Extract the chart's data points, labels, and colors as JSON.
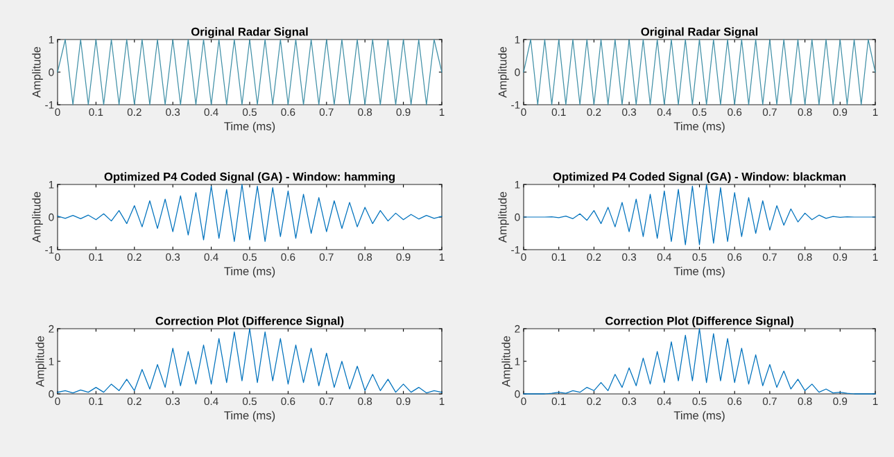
{
  "chart_data": [
    {
      "type": "line",
      "title": "Original Radar Signal",
      "xlabel": "Time (ms)",
      "ylabel": "Amplitude",
      "xlim": [
        0,
        1
      ],
      "ylim": [
        -1,
        1
      ],
      "xticks": [
        0,
        0.1,
        0.2,
        0.3,
        0.4,
        0.5,
        0.6,
        0.7,
        0.8,
        0.9,
        1
      ],
      "yticks": [
        -1,
        0,
        1
      ],
      "grid": false,
      "x": [
        0,
        0.02,
        0.04,
        0.06,
        0.08,
        0.1,
        0.12,
        0.14,
        0.16,
        0.18,
        0.2,
        0.22,
        0.24,
        0.26,
        0.28,
        0.3,
        0.32,
        0.34,
        0.36,
        0.38,
        0.4,
        0.42,
        0.44,
        0.46,
        0.48,
        0.5,
        0.52,
        0.54,
        0.56,
        0.58,
        0.6,
        0.62,
        0.64,
        0.66,
        0.68,
        0.7,
        0.72,
        0.74,
        0.76,
        0.78,
        0.8,
        0.82,
        0.84,
        0.86,
        0.88,
        0.9,
        0.92,
        0.94,
        0.96,
        0.98,
        1
      ],
      "series": [
        {
          "color": "#3f8fa6",
          "values": [
            0,
            1,
            -1,
            1,
            -1,
            1,
            -1,
            1,
            -1,
            1,
            -1,
            1,
            -1,
            1,
            -1,
            1,
            -1,
            1,
            -1,
            1,
            -1,
            1,
            -1,
            1,
            -1,
            1,
            -1,
            1,
            -1,
            1,
            -1,
            1,
            -1,
            1,
            -1,
            1,
            -1,
            1,
            -1,
            1,
            -1,
            1,
            -1,
            1,
            -1,
            1,
            -1,
            1,
            -1,
            1,
            0
          ]
        }
      ]
    },
    {
      "type": "line",
      "title": "Original Radar Signal",
      "xlabel": "Time (ms)",
      "ylabel": "Amplitude",
      "xlim": [
        0,
        1
      ],
      "ylim": [
        -1,
        1
      ],
      "xticks": [
        0,
        0.1,
        0.2,
        0.3,
        0.4,
        0.5,
        0.6,
        0.7,
        0.8,
        0.9,
        1
      ],
      "yticks": [
        -1,
        0,
        1
      ],
      "grid": false,
      "x": [
        0,
        0.02,
        0.04,
        0.06,
        0.08,
        0.1,
        0.12,
        0.14,
        0.16,
        0.18,
        0.2,
        0.22,
        0.24,
        0.26,
        0.28,
        0.3,
        0.32,
        0.34,
        0.36,
        0.38,
        0.4,
        0.42,
        0.44,
        0.46,
        0.48,
        0.5,
        0.52,
        0.54,
        0.56,
        0.58,
        0.6,
        0.62,
        0.64,
        0.66,
        0.68,
        0.7,
        0.72,
        0.74,
        0.76,
        0.78,
        0.8,
        0.82,
        0.84,
        0.86,
        0.88,
        0.9,
        0.92,
        0.94,
        0.96,
        0.98,
        1
      ],
      "series": [
        {
          "color": "#3f8fa6",
          "values": [
            0,
            1,
            -1,
            1,
            -1,
            1,
            -1,
            1,
            -1,
            1,
            -1,
            1,
            -1,
            1,
            -1,
            1,
            -1,
            1,
            -1,
            1,
            -1,
            1,
            -1,
            1,
            -1,
            1,
            -1,
            1,
            -1,
            1,
            -1,
            1,
            -1,
            1,
            -1,
            1,
            -1,
            1,
            -1,
            1,
            -1,
            1,
            -1,
            1,
            -1,
            1,
            -1,
            1,
            -1,
            1,
            0
          ]
        }
      ]
    },
    {
      "type": "line",
      "title": "Optimized P4 Coded Signal (GA) - Window: hamming",
      "xlabel": "Time (ms)",
      "ylabel": "Amplitude",
      "xlim": [
        0,
        1
      ],
      "ylim": [
        -1,
        1
      ],
      "xticks": [
        0,
        0.1,
        0.2,
        0.3,
        0.4,
        0.5,
        0.6,
        0.7,
        0.8,
        0.9,
        1
      ],
      "yticks": [
        -1,
        0,
        1
      ],
      "grid": false,
      "x": [
        0,
        0.02,
        0.04,
        0.06,
        0.08,
        0.1,
        0.12,
        0.14,
        0.16,
        0.18,
        0.2,
        0.22,
        0.24,
        0.26,
        0.28,
        0.3,
        0.32,
        0.34,
        0.36,
        0.38,
        0.4,
        0.42,
        0.44,
        0.46,
        0.48,
        0.5,
        0.52,
        0.54,
        0.56,
        0.58,
        0.6,
        0.62,
        0.64,
        0.66,
        0.68,
        0.7,
        0.72,
        0.74,
        0.76,
        0.78,
        0.8,
        0.82,
        0.84,
        0.86,
        0.88,
        0.9,
        0.92,
        0.94,
        0.96,
        0.98,
        1
      ],
      "series": [
        {
          "color": "#0072bd",
          "values": [
            0.03,
            -0.04,
            0.05,
            -0.05,
            0.06,
            -0.08,
            0.1,
            -0.12,
            0.2,
            -0.2,
            0.35,
            -0.3,
            0.5,
            -0.35,
            0.55,
            -0.45,
            0.65,
            -0.55,
            0.75,
            -0.7,
            0.95,
            -0.65,
            0.85,
            -0.75,
            1.0,
            -0.7,
            0.95,
            -0.75,
            0.9,
            -0.6,
            0.8,
            -0.65,
            0.7,
            -0.5,
            0.6,
            -0.45,
            0.5,
            -0.35,
            0.45,
            -0.3,
            0.3,
            -0.2,
            0.2,
            -0.12,
            0.12,
            -0.08,
            0.08,
            -0.06,
            0.05,
            -0.04,
            0.02
          ]
        }
      ]
    },
    {
      "type": "line",
      "title": "Optimized P4 Coded Signal (GA) - Window: blackman",
      "xlabel": "Time (ms)",
      "ylabel": "Amplitude",
      "xlim": [
        0,
        1
      ],
      "ylim": [
        -1,
        1
      ],
      "xticks": [
        0,
        0.1,
        0.2,
        0.3,
        0.4,
        0.5,
        0.6,
        0.7,
        0.8,
        0.9,
        1
      ],
      "yticks": [
        -1,
        0,
        1
      ],
      "grid": false,
      "x": [
        0,
        0.02,
        0.04,
        0.06,
        0.08,
        0.1,
        0.12,
        0.14,
        0.16,
        0.18,
        0.2,
        0.22,
        0.24,
        0.26,
        0.28,
        0.3,
        0.32,
        0.34,
        0.36,
        0.38,
        0.4,
        0.42,
        0.44,
        0.46,
        0.48,
        0.5,
        0.52,
        0.54,
        0.56,
        0.58,
        0.6,
        0.62,
        0.64,
        0.66,
        0.68,
        0.7,
        0.72,
        0.74,
        0.76,
        0.78,
        0.8,
        0.82,
        0.84,
        0.86,
        0.88,
        0.9,
        0.92,
        0.94,
        0.96,
        0.98,
        1
      ],
      "series": [
        {
          "color": "#0072bd",
          "values": [
            0,
            0,
            0,
            0,
            0.01,
            -0.02,
            0.03,
            -0.05,
            0.1,
            -0.1,
            0.2,
            -0.2,
            0.3,
            -0.3,
            0.45,
            -0.45,
            0.55,
            -0.6,
            0.7,
            -0.65,
            0.8,
            -0.75,
            0.85,
            -0.85,
            0.95,
            -0.85,
            1.0,
            -0.8,
            0.9,
            -0.75,
            0.75,
            -0.6,
            0.6,
            -0.5,
            0.5,
            -0.4,
            0.35,
            -0.25,
            0.25,
            -0.15,
            0.12,
            -0.08,
            0.06,
            -0.04,
            0.02,
            -0.01,
            0.01,
            0,
            0,
            0,
            0
          ]
        }
      ]
    },
    {
      "type": "line",
      "title": "Correction Plot (Difference Signal)",
      "xlabel": "Time (ms)",
      "ylabel": "Amplitude",
      "xlim": [
        0,
        1
      ],
      "ylim": [
        0,
        2
      ],
      "xticks": [
        0,
        0.1,
        0.2,
        0.3,
        0.4,
        0.5,
        0.6,
        0.7,
        0.8,
        0.9,
        1
      ],
      "yticks": [
        0,
        1,
        2
      ],
      "grid": false,
      "x": [
        0,
        0.02,
        0.04,
        0.06,
        0.08,
        0.1,
        0.12,
        0.14,
        0.16,
        0.18,
        0.2,
        0.22,
        0.24,
        0.26,
        0.28,
        0.3,
        0.32,
        0.34,
        0.36,
        0.38,
        0.4,
        0.42,
        0.44,
        0.46,
        0.48,
        0.5,
        0.52,
        0.54,
        0.56,
        0.58,
        0.6,
        0.62,
        0.64,
        0.66,
        0.68,
        0.7,
        0.72,
        0.74,
        0.76,
        0.78,
        0.8,
        0.82,
        0.84,
        0.86,
        0.88,
        0.9,
        0.92,
        0.94,
        0.96,
        0.98,
        1
      ],
      "series": [
        {
          "color": "#0072bd",
          "values": [
            0.05,
            0.1,
            0.03,
            0.12,
            0.05,
            0.2,
            0.05,
            0.3,
            0.1,
            0.45,
            0.1,
            0.75,
            0.15,
            0.9,
            0.2,
            1.4,
            0.25,
            1.3,
            0.3,
            1.5,
            0.3,
            1.7,
            0.35,
            1.9,
            0.4,
            2.0,
            0.35,
            1.9,
            0.4,
            1.7,
            0.3,
            1.5,
            0.35,
            1.4,
            0.25,
            1.25,
            0.2,
            1.0,
            0.15,
            0.85,
            0.1,
            0.6,
            0.1,
            0.45,
            0.05,
            0.3,
            0.05,
            0.2,
            0.03,
            0.1,
            0.05
          ]
        }
      ]
    },
    {
      "type": "line",
      "title": "Correction Plot (Difference Signal)",
      "xlabel": "Time (ms)",
      "ylabel": "Amplitude",
      "xlim": [
        0,
        1
      ],
      "ylim": [
        0,
        2
      ],
      "xticks": [
        0,
        0.1,
        0.2,
        0.3,
        0.4,
        0.5,
        0.6,
        0.7,
        0.8,
        0.9,
        1
      ],
      "yticks": [
        0,
        1,
        2
      ],
      "grid": false,
      "x": [
        0,
        0.02,
        0.04,
        0.06,
        0.08,
        0.1,
        0.12,
        0.14,
        0.16,
        0.18,
        0.2,
        0.22,
        0.24,
        0.26,
        0.28,
        0.3,
        0.32,
        0.34,
        0.36,
        0.38,
        0.4,
        0.42,
        0.44,
        0.46,
        0.48,
        0.5,
        0.52,
        0.54,
        0.56,
        0.58,
        0.6,
        0.62,
        0.64,
        0.66,
        0.68,
        0.7,
        0.72,
        0.74,
        0.76,
        0.78,
        0.8,
        0.82,
        0.84,
        0.86,
        0.88,
        0.9,
        0.92,
        0.94,
        0.96,
        0.98,
        1
      ],
      "series": [
        {
          "color": "#0072bd",
          "values": [
            0,
            0,
            0,
            0,
            0.02,
            0.05,
            0.02,
            0.1,
            0.05,
            0.2,
            0.1,
            0.35,
            0.1,
            0.6,
            0.2,
            0.8,
            0.25,
            1.1,
            0.3,
            1.3,
            0.35,
            1.6,
            0.4,
            1.8,
            0.4,
            2.0,
            0.35,
            1.85,
            0.4,
            1.7,
            0.35,
            1.4,
            0.3,
            1.2,
            0.25,
            0.9,
            0.2,
            0.7,
            0.15,
            0.45,
            0.1,
            0.3,
            0.05,
            0.15,
            0.03,
            0.05,
            0.02,
            0,
            0,
            0,
            0
          ]
        }
      ]
    }
  ]
}
